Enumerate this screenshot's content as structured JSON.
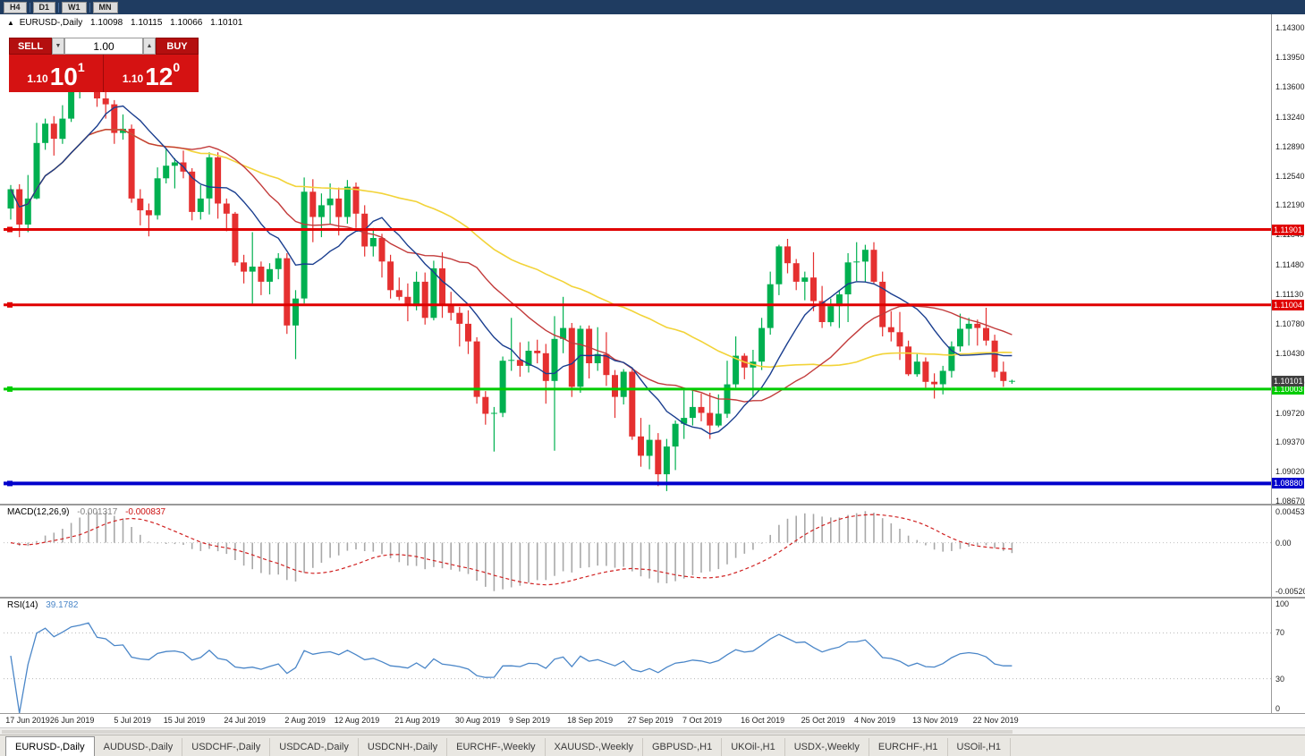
{
  "toolbar": {
    "timeframes": [
      "H4",
      "D1",
      "W1",
      "MN"
    ],
    "active": "D1"
  },
  "header": {
    "symbol": "EURUSD-,Daily",
    "ohlc": [
      "1.10098",
      "1.10115",
      "1.10066",
      "1.10101"
    ]
  },
  "icons": {
    "spin_up": "▲",
    "spin_down": "▼",
    "header_arrow": "▲"
  },
  "trade_panel": {
    "sell_label": "SELL",
    "buy_label": "BUY",
    "volume": "1.00",
    "sell_price": {
      "prefix": "1.10",
      "big": "10",
      "sup": "1"
    },
    "buy_price": {
      "prefix": "1.10",
      "big": "12",
      "sup": "0"
    }
  },
  "chart_data": {
    "type": "candlestick",
    "symbol": "EURUSD-,Daily",
    "y_axis": {
      "min": 1.0864,
      "max": 1.1445,
      "ticks": [
        "1.14300",
        "1.13950",
        "1.13600",
        "1.13240",
        "1.12890",
        "1.12540",
        "1.12190",
        "1.11840",
        "1.11480",
        "1.11130",
        "1.10780",
        "1.10430",
        "1.10080",
        "1.09720",
        "1.09370",
        "1.09020",
        "1.08670"
      ]
    },
    "candle_colors": {
      "up": "#00b050",
      "down": "#e53030"
    },
    "candles": [
      [
        1.1215,
        1.1243,
        1.1202,
        1.1238
      ],
      [
        1.1238,
        1.1244,
        1.1181,
        1.1196
      ],
      [
        1.1196,
        1.1255,
        1.1187,
        1.1227
      ],
      [
        1.1227,
        1.1317,
        1.1226,
        1.1293
      ],
      [
        1.1293,
        1.1322,
        1.1285,
        1.1316
      ],
      [
        1.1316,
        1.1325,
        1.1278,
        1.1298
      ],
      [
        1.1298,
        1.1338,
        1.1292,
        1.1322
      ],
      [
        1.1322,
        1.1368,
        1.1318,
        1.136
      ],
      [
        1.136,
        1.1381,
        1.1346,
        1.1375
      ],
      [
        1.1375,
        1.1412,
        1.1371,
        1.1399
      ],
      [
        1.1399,
        1.1404,
        1.1336,
        1.1346
      ],
      [
        1.1346,
        1.136,
        1.1322,
        1.1339
      ],
      [
        1.1339,
        1.1344,
        1.1292,
        1.1305
      ],
      [
        1.1305,
        1.1327,
        1.1297,
        1.131
      ],
      [
        1.131,
        1.1315,
        1.1222,
        1.1227
      ],
      [
        1.1227,
        1.1238,
        1.1195,
        1.1213
      ],
      [
        1.1213,
        1.1221,
        1.1182,
        1.1207
      ],
      [
        1.1207,
        1.1264,
        1.1202,
        1.1251
      ],
      [
        1.1251,
        1.1286,
        1.1245,
        1.1266
      ],
      [
        1.1266,
        1.1275,
        1.1239,
        1.127
      ],
      [
        1.127,
        1.1284,
        1.1251,
        1.1259
      ],
      [
        1.1259,
        1.1263,
        1.1201,
        1.1211
      ],
      [
        1.1211,
        1.1243,
        1.1202,
        1.1227
      ],
      [
        1.1227,
        1.1282,
        1.1208,
        1.1276
      ],
      [
        1.1276,
        1.1282,
        1.1203,
        1.1221
      ],
      [
        1.1221,
        1.1227,
        1.1188,
        1.1209
      ],
      [
        1.1209,
        1.1211,
        1.1147,
        1.1151
      ],
      [
        1.1151,
        1.116,
        1.1126,
        1.114
      ],
      [
        1.114,
        1.1187,
        1.1101,
        1.1146
      ],
      [
        1.1146,
        1.1152,
        1.1112,
        1.1128
      ],
      [
        1.1128,
        1.115,
        1.1113,
        1.1143
      ],
      [
        1.1143,
        1.1162,
        1.1131,
        1.1156
      ],
      [
        1.1156,
        1.1162,
        1.1066,
        1.1076
      ],
      [
        1.1076,
        1.1118,
        1.1036,
        1.1108
      ],
      [
        1.1108,
        1.1252,
        1.1102,
        1.1235
      ],
      [
        1.1235,
        1.125,
        1.1175,
        1.1205
      ],
      [
        1.1205,
        1.1233,
        1.1181,
        1.1219
      ],
      [
        1.1219,
        1.1245,
        1.1196,
        1.1227
      ],
      [
        1.1227,
        1.124,
        1.1183,
        1.1205
      ],
      [
        1.1205,
        1.1249,
        1.1197,
        1.1241
      ],
      [
        1.1241,
        1.1246,
        1.1192,
        1.1209
      ],
      [
        1.1209,
        1.1219,
        1.1158,
        1.117
      ],
      [
        1.117,
        1.1192,
        1.1158,
        1.118
      ],
      [
        1.118,
        1.1185,
        1.1133,
        1.1152
      ],
      [
        1.1152,
        1.116,
        1.1108,
        1.1118
      ],
      [
        1.1118,
        1.1133,
        1.1106,
        1.111
      ],
      [
        1.111,
        1.1126,
        1.1081,
        1.1099
      ],
      [
        1.1099,
        1.114,
        1.1094,
        1.1128
      ],
      [
        1.1128,
        1.1139,
        1.1077,
        1.1085
      ],
      [
        1.1085,
        1.1153,
        1.1082,
        1.1144
      ],
      [
        1.1144,
        1.1163,
        1.1085,
        1.11
      ],
      [
        1.11,
        1.1116,
        1.1082,
        1.1091
      ],
      [
        1.1091,
        1.1098,
        1.1051,
        1.1078
      ],
      [
        1.1078,
        1.1094,
        1.1042,
        1.1057
      ],
      [
        1.1057,
        1.1062,
        1.0983,
        1.0991
      ],
      [
        1.0991,
        1.0998,
        1.0958,
        1.0971
      ],
      [
        1.0971,
        1.0979,
        1.0926,
        1.0972
      ],
      [
        1.0972,
        1.1039,
        1.0967,
        1.1034
      ],
      [
        1.1034,
        1.1085,
        1.1022,
        1.1035
      ],
      [
        1.1035,
        1.1056,
        1.1015,
        1.1028
      ],
      [
        1.1028,
        1.1057,
        1.102,
        1.1046
      ],
      [
        1.1046,
        1.1059,
        1.1031,
        1.1043
      ],
      [
        1.1043,
        1.1054,
        1.0983,
        1.101
      ],
      [
        1.101,
        1.1087,
        1.0927,
        1.106
      ],
      [
        1.106,
        1.111,
        1.1043,
        1.1073
      ],
      [
        1.1073,
        1.1079,
        1.0991,
        1.1003
      ],
      [
        1.1003,
        1.1076,
        1.0996,
        1.1072
      ],
      [
        1.1072,
        1.1076,
        1.1013,
        1.1031
      ],
      [
        1.1031,
        1.1074,
        1.1022,
        1.1042
      ],
      [
        1.1042,
        1.1068,
        1.1004,
        1.1017
      ],
      [
        1.1017,
        1.1023,
        1.0966,
        1.0991
      ],
      [
        1.0991,
        1.1024,
        1.0982,
        1.1021
      ],
      [
        1.1021,
        1.1024,
        1.094,
        1.0944
      ],
      [
        1.0944,
        1.0966,
        1.0908,
        1.0921
      ],
      [
        1.0921,
        1.0958,
        1.0905,
        1.094
      ],
      [
        1.094,
        1.0948,
        1.0885,
        1.0899
      ],
      [
        1.0899,
        1.0941,
        1.0879,
        1.0932
      ],
      [
        1.0932,
        1.0963,
        1.0904,
        1.0959
      ],
      [
        1.0959,
        1.0999,
        1.0941,
        1.0966
      ],
      [
        1.0966,
        1.0999,
        1.0957,
        1.0979
      ],
      [
        1.0979,
        1.0995,
        1.0962,
        1.0972
      ],
      [
        1.0972,
        1.0996,
        1.0941,
        1.0957
      ],
      [
        1.0957,
        1.0994,
        1.0955,
        1.0971
      ],
      [
        1.0971,
        1.1034,
        1.0966,
        1.1006
      ],
      [
        1.1006,
        1.1063,
        1.1002,
        1.104
      ],
      [
        1.104,
        1.1043,
        1.1012,
        1.1026
      ],
      [
        1.1026,
        1.1047,
        1.0991,
        1.1033
      ],
      [
        1.1033,
        1.1085,
        1.1023,
        1.1073
      ],
      [
        1.1073,
        1.114,
        1.1065,
        1.1125
      ],
      [
        1.1125,
        1.1172,
        1.1112,
        1.117
      ],
      [
        1.117,
        1.1179,
        1.1138,
        1.115
      ],
      [
        1.115,
        1.1155,
        1.1118,
        1.1128
      ],
      [
        1.1128,
        1.114,
        1.1106,
        1.1133
      ],
      [
        1.1133,
        1.1163,
        1.1093,
        1.1105
      ],
      [
        1.1105,
        1.1123,
        1.1073,
        1.108
      ],
      [
        1.108,
        1.1108,
        1.1075,
        1.1099
      ],
      [
        1.1099,
        1.1118,
        1.1073,
        1.1113
      ],
      [
        1.1113,
        1.1162,
        1.108,
        1.1151
      ],
      [
        1.1151,
        1.1175,
        1.1129,
        1.1152
      ],
      [
        1.1152,
        1.1172,
        1.1128,
        1.1166
      ],
      [
        1.1166,
        1.1175,
        1.1126,
        1.1128
      ],
      [
        1.1128,
        1.114,
        1.1063,
        1.1074
      ],
      [
        1.1074,
        1.1093,
        1.1057,
        1.1068
      ],
      [
        1.1068,
        1.1092,
        1.1035,
        1.1051
      ],
      [
        1.1051,
        1.1058,
        1.1016,
        1.1018
      ],
      [
        1.1018,
        1.1042,
        1.1015,
        1.1033
      ],
      [
        1.1033,
        1.1038,
        1.1002,
        1.1009
      ],
      [
        1.1009,
        1.1019,
        1.0989,
        1.1006
      ],
      [
        1.1006,
        1.1028,
        1.0994,
        1.1022
      ],
      [
        1.1022,
        1.1057,
        1.1014,
        1.1051
      ],
      [
        1.1051,
        1.109,
        1.1045,
        1.1072
      ],
      [
        1.1072,
        1.1085,
        1.1052,
        1.1078
      ],
      [
        1.1078,
        1.1083,
        1.1052,
        1.1073
      ],
      [
        1.1073,
        1.1097,
        1.1052,
        1.1058
      ],
      [
        1.1058,
        1.1065,
        1.1014,
        1.1021
      ],
      [
        1.1021,
        1.1033,
        1.1003,
        1.101
      ],
      [
        1.10098,
        1.10115,
        1.10066,
        1.10101
      ]
    ],
    "date_labels": [
      [
        0,
        "17 Jun 2019"
      ],
      [
        7,
        "26 Jun 2019"
      ],
      [
        14,
        "5 Jul 2019"
      ],
      [
        20,
        "15 Jul 2019"
      ],
      [
        27,
        "24 Jul 2019"
      ],
      [
        34,
        "2 Aug 2019"
      ],
      [
        40,
        "12 Aug 2019"
      ],
      [
        47,
        "21 Aug 2019"
      ],
      [
        54,
        "30 Aug 2019"
      ],
      [
        60,
        "9 Sep 2019"
      ],
      [
        67,
        "18 Sep 2019"
      ],
      [
        74,
        "27 Sep 2019"
      ],
      [
        80,
        "7 Oct 2019"
      ],
      [
        87,
        "16 Oct 2019"
      ],
      [
        94,
        "25 Oct 2019"
      ],
      [
        100,
        "4 Nov 2019"
      ],
      [
        107,
        "13 Nov 2019"
      ],
      [
        114,
        "22 Nov 2019"
      ]
    ],
    "moving_averages": [
      {
        "period": 45,
        "color": "#f2d338",
        "width": 1.6
      },
      {
        "period": 21,
        "color": "#c23a3a",
        "width": 1.4
      },
      {
        "period": 10,
        "color": "#1a3e8f",
        "width": 1.4
      }
    ],
    "h_lines": [
      {
        "price": 1.11901,
        "color": "#e00000",
        "width": 3,
        "label": "1.11901"
      },
      {
        "price": 1.11004,
        "color": "#e00000",
        "width": 3,
        "label": "1.11004"
      },
      {
        "price": 1.10003,
        "color": "#00cc00",
        "width": 3,
        "label": "1.10003"
      },
      {
        "price": 1.0888,
        "color": "#0000cc",
        "width": 4,
        "label": "1.08880"
      }
    ],
    "current_price": {
      "price": 1.10101,
      "label": "1.10101",
      "color": "#404040"
    },
    "macd": {
      "label": "MACD(12,26,9)",
      "value_main": "-0.001317",
      "value_signal": "-0.000837",
      "fast": 12,
      "slow": 26,
      "signal": 9,
      "axis_top": "0.004536",
      "axis_zero": "0.00",
      "axis_bottom": "-0.00520",
      "hist_color": "#a8a8a8",
      "signal_color": "#d02020"
    },
    "rsi": {
      "label": "RSI(14)",
      "value": "39.1782",
      "period": 14,
      "levels": [
        70,
        30
      ],
      "axis": [
        "100",
        "70",
        "30",
        "0"
      ],
      "color": "#4a86c8"
    }
  },
  "tabs": {
    "active": "EURUSD-,Daily",
    "items": [
      "EURUSD-,Daily",
      "AUDUSD-,Daily",
      "USDCHF-,Daily",
      "USDCAD-,Daily",
      "USDCNH-,Daily",
      "EURCHF-,Weekly",
      "XAUUSD-,Weekly",
      "GBPUSD-,H1",
      "UKOil-,H1",
      "USDX-,Weekly",
      "EURCHF-,H1",
      "USOil-,H1"
    ]
  }
}
